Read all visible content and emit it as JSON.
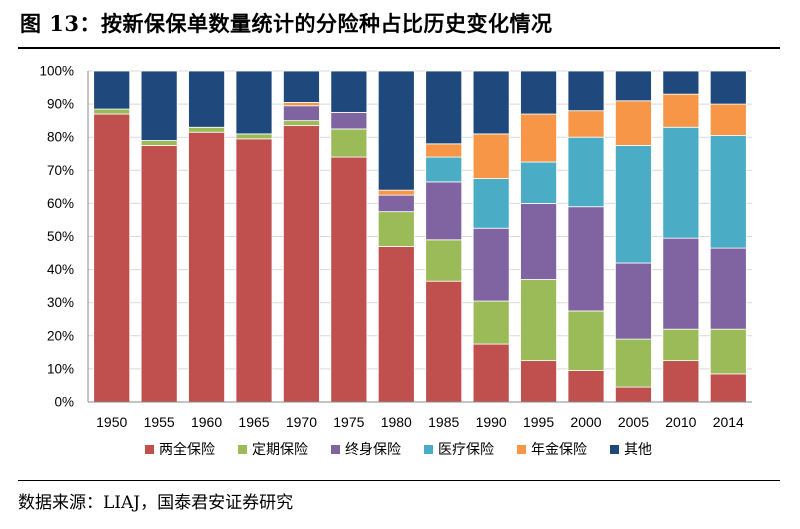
{
  "figure": {
    "title": "图 13：按新保保单数量统计的分险种占比历史变化情况",
    "source": "数据来源：LIAJ，国泰君安证券研究"
  },
  "chart_data": {
    "type": "bar",
    "stacked": true,
    "categories": [
      "1950",
      "1955",
      "1960",
      "1965",
      "1970",
      "1975",
      "1980",
      "1985",
      "1990",
      "1995",
      "2000",
      "2005",
      "2010",
      "2014"
    ],
    "ylim": [
      0,
      100
    ],
    "yticks": [
      "0%",
      "10%",
      "20%",
      "30%",
      "40%",
      "50%",
      "60%",
      "70%",
      "80%",
      "90%",
      "100%"
    ],
    "legend_position": "bottom",
    "series": [
      {
        "name": "两全保险",
        "color": "#c0504d",
        "values": [
          87,
          77.5,
          81.5,
          79.5,
          83.5,
          74,
          47,
          36.5,
          17.5,
          12.5,
          9.5,
          4.5,
          12.5,
          8.5
        ]
      },
      {
        "name": "定期保险",
        "color": "#9bbb59",
        "values": [
          1.5,
          1.5,
          1.5,
          1.5,
          1.5,
          8.5,
          10.5,
          12.5,
          13,
          24.5,
          18,
          14.5,
          9.5,
          13.5
        ]
      },
      {
        "name": "终身保险",
        "color": "#8064a2",
        "values": [
          0,
          0,
          0,
          0,
          4.5,
          5,
          5,
          17.5,
          22,
          23,
          31.5,
          23,
          27.5,
          24.5
        ]
      },
      {
        "name": "医疗保险",
        "color": "#4bacc6",
        "values": [
          0,
          0,
          0,
          0,
          0,
          0,
          0,
          7.5,
          15,
          12.5,
          21,
          35.5,
          33.5,
          34
        ]
      },
      {
        "name": "年金保险",
        "color": "#f79646",
        "values": [
          0,
          0,
          0,
          0,
          1,
          0,
          1.5,
          4,
          13.5,
          14.5,
          8,
          13.5,
          10,
          9.5
        ]
      },
      {
        "name": "其他",
        "color": "#1f497d",
        "values": [
          11.5,
          21,
          17,
          19,
          9.5,
          12.5,
          36,
          22,
          19,
          13,
          12,
          9,
          7,
          10
        ]
      }
    ]
  }
}
